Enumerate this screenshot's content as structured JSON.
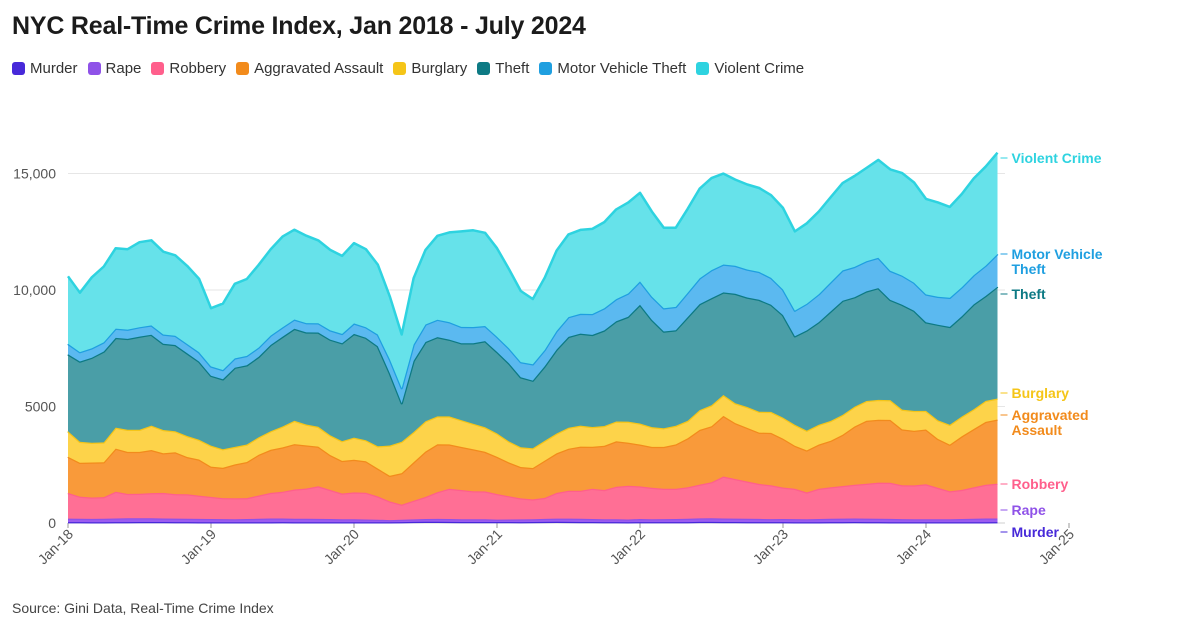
{
  "title": "NYC Real-Time Crime Index, Jan 2018 - July 2024",
  "source": "Source: Gini Data, Real-Time Crime Index",
  "chart_data": {
    "type": "area",
    "stacked": true,
    "x_start": "2018-01",
    "x_end": "2024-07",
    "x_ticks": [
      "Jan-18",
      "Jan-19",
      "Jan-20",
      "Jan-21",
      "Jan-22",
      "Jan-23",
      "Jan-24",
      "Jan-25"
    ],
    "y_ticks": [
      "0",
      "5000",
      "10,000",
      "15,000"
    ],
    "ylim": [
      0,
      17500
    ],
    "grid": true,
    "legend_position": "top",
    "series": [
      {
        "name": "Murder",
        "color": "#4729d9",
        "fill": "#5b35f0",
        "label": "Murder",
        "values": [
          40,
          38,
          36,
          35,
          38,
          40,
          42,
          44,
          42,
          40,
          38,
          36,
          30,
          32,
          30,
          30,
          32,
          36,
          38,
          36,
          34,
          32,
          30,
          30,
          35,
          32,
          30,
          35,
          40,
          46,
          50,
          52,
          48,
          45,
          42,
          42,
          45,
          42,
          40,
          42,
          46,
          50,
          48,
          45,
          42,
          40,
          38,
          36,
          40,
          40,
          38,
          38,
          40,
          46,
          48,
          45,
          42,
          40,
          38,
          38,
          38,
          36,
          34,
          36,
          38,
          40,
          42,
          40,
          38,
          36,
          34,
          32,
          32,
          30,
          30,
          32,
          34,
          36,
          38
        ]
      },
      {
        "name": "Rape",
        "color": "#8f52e8",
        "fill": "#9b5cf0",
        "label": "Rape",
        "values": [
          150,
          145,
          140,
          145,
          155,
          160,
          160,
          158,
          150,
          150,
          145,
          140,
          140,
          135,
          135,
          140,
          150,
          155,
          155,
          150,
          145,
          145,
          140,
          135,
          130,
          120,
          110,
          90,
          100,
          110,
          120,
          125,
          125,
          120,
          120,
          115,
          100,
          110,
          115,
          120,
          130,
          140,
          140,
          135,
          130,
          125,
          120,
          115,
          130,
          125,
          130,
          135,
          145,
          150,
          155,
          150,
          145,
          140,
          140,
          130,
          135,
          130,
          130,
          135,
          145,
          150,
          150,
          148,
          145,
          140,
          135,
          130,
          130,
          130,
          135,
          140,
          150,
          155,
          155
        ]
      },
      {
        "name": "Robbery",
        "color": "#ff5f8c",
        "fill": "#ff6f95",
        "label": "Robbery",
        "values": [
          1100,
          950,
          920,
          930,
          1150,
          1050,
          1050,
          1080,
          1100,
          1050,
          1050,
          1000,
          950,
          900,
          900,
          900,
          1000,
          1100,
          1150,
          1250,
          1300,
          1400,
          1250,
          1100,
          1150,
          1150,
          1000,
          800,
          650,
          800,
          950,
          1150,
          1300,
          1250,
          1200,
          1200,
          1100,
          1000,
          900,
          850,
          900,
          1100,
          1200,
          1200,
          1300,
          1250,
          1400,
          1450,
          1400,
          1350,
          1300,
          1300,
          1350,
          1450,
          1550,
          1800,
          1700,
          1600,
          1500,
          1450,
          1350,
          1300,
          1150,
          1300,
          1350,
          1400,
          1450,
          1500,
          1550,
          1550,
          1450,
          1450,
          1500,
          1350,
          1200,
          1250,
          1350,
          1450,
          1500
        ]
      },
      {
        "name": "Aggravated Assault",
        "color": "#f28b1c",
        "fill": "#f99a3a",
        "label": "Aggravated Assault",
        "values": [
          1550,
          1450,
          1500,
          1500,
          1850,
          1800,
          1800,
          1850,
          1700,
          1800,
          1600,
          1550,
          1300,
          1300,
          1450,
          1550,
          1750,
          1850,
          1900,
          1950,
          1850,
          1700,
          1500,
          1400,
          1400,
          1350,
          1200,
          1100,
          1350,
          1650,
          1950,
          2050,
          1900,
          1850,
          1800,
          1700,
          1600,
          1450,
          1350,
          1350,
          1600,
          1700,
          1800,
          1900,
          1800,
          1900,
          1950,
          1850,
          1800,
          1750,
          1800,
          1900,
          2100,
          2350,
          2400,
          2600,
          2400,
          2300,
          2200,
          2250,
          2100,
          1850,
          1800,
          1900,
          2000,
          2200,
          2500,
          2700,
          2700,
          2700,
          2400,
          2350,
          2350,
          2100,
          2000,
          2300,
          2500,
          2700,
          2750
        ]
      },
      {
        "name": "Burglary",
        "color": "#f5c518",
        "fill": "#fdd34a",
        "label": "Burglary",
        "values": [
          1100,
          900,
          850,
          850,
          900,
          950,
          950,
          1050,
          1000,
          900,
          900,
          850,
          900,
          800,
          750,
          750,
          750,
          800,
          900,
          1000,
          900,
          850,
          850,
          850,
          950,
          900,
          950,
          1300,
          1350,
          1300,
          1300,
          1200,
          1200,
          1150,
          1100,
          1050,
          1000,
          900,
          850,
          850,
          850,
          850,
          900,
          900,
          850,
          850,
          850,
          900,
          900,
          850,
          800,
          800,
          750,
          850,
          900,
          900,
          850,
          900,
          900,
          900,
          900,
          900,
          850,
          850,
          850,
          850,
          850,
          850,
          850,
          850,
          850,
          850,
          800,
          800,
          850,
          850,
          850,
          900,
          900
        ]
      },
      {
        "name": "Theft",
        "color": "#0d7a84",
        "fill": "#4a9ea7",
        "label": "Theft",
        "values": [
          3300,
          3450,
          3650,
          3900,
          3850,
          3900,
          4000,
          3900,
          3700,
          3700,
          3550,
          3350,
          3000,
          3000,
          3400,
          3400,
          3450,
          3700,
          3850,
          3950,
          3950,
          4050,
          4100,
          4200,
          4450,
          4400,
          4300,
          3100,
          1650,
          3050,
          3400,
          3400,
          3300,
          3300,
          3450,
          3700,
          3500,
          3350,
          3000,
          2900,
          3200,
          3600,
          3900,
          3950,
          3950,
          4100,
          4300,
          4500,
          5100,
          4600,
          4150,
          4100,
          4450,
          4550,
          4600,
          4400,
          4700,
          4700,
          4800,
          4600,
          4400,
          3800,
          4300,
          4400,
          4700,
          4900,
          4700,
          4700,
          4800,
          4300,
          4500,
          4300,
          3800,
          4100,
          4200,
          4300,
          4500,
          4500,
          4800
        ]
      },
      {
        "name": "Motor Vehicle Theft",
        "color": "#1f9fe0",
        "fill": "#5bb9f0",
        "label": "Motor Vehicle Theft",
        "values": [
          450,
          400,
          400,
          400,
          400,
          400,
          400,
          400,
          400,
          400,
          400,
          400,
          400,
          400,
          400,
          400,
          400,
          400,
          400,
          400,
          400,
          400,
          400,
          400,
          450,
          450,
          500,
          600,
          650,
          700,
          750,
          750,
          750,
          700,
          700,
          650,
          650,
          650,
          650,
          700,
          700,
          800,
          850,
          850,
          900,
          950,
          950,
          1000,
          1000,
          1000,
          1000,
          1000,
          1050,
          1100,
          1200,
          1200,
          1200,
          1200,
          1200,
          1150,
          1100,
          1100,
          1150,
          1200,
          1250,
          1300,
          1300,
          1300,
          1300,
          1250,
          1250,
          1200,
          1200,
          1200,
          1250,
          1250,
          1250,
          1300,
          1400
        ]
      },
      {
        "name": "Violent Crime",
        "color": "#2ed3e0",
        "fill": "#66e2ea",
        "label": "Violent Crime",
        "values": [
          2900,
          2550,
          3050,
          3250,
          3450,
          3450,
          3650,
          3650,
          3550,
          3450,
          3350,
          3150,
          2500,
          2850,
          3200,
          3300,
          3550,
          3700,
          3900,
          3850,
          3750,
          3550,
          3450,
          3350,
          3450,
          3350,
          3000,
          2700,
          2300,
          2850,
          3200,
          3600,
          3850,
          4100,
          4150,
          4000,
          3800,
          3400,
          3050,
          2800,
          3100,
          3450,
          3550,
          3600,
          3650,
          3700,
          3850,
          3900,
          3800,
          3650,
          3450,
          3400,
          3600,
          3850,
          3950,
          3900,
          3700,
          3650,
          3600,
          3550,
          3500,
          3400,
          3450,
          3550,
          3650,
          3750,
          3900,
          4000,
          4200,
          4350,
          4400,
          4300,
          4100,
          4050,
          3900,
          4000,
          4150,
          4250,
          4350
        ]
      }
    ]
  }
}
